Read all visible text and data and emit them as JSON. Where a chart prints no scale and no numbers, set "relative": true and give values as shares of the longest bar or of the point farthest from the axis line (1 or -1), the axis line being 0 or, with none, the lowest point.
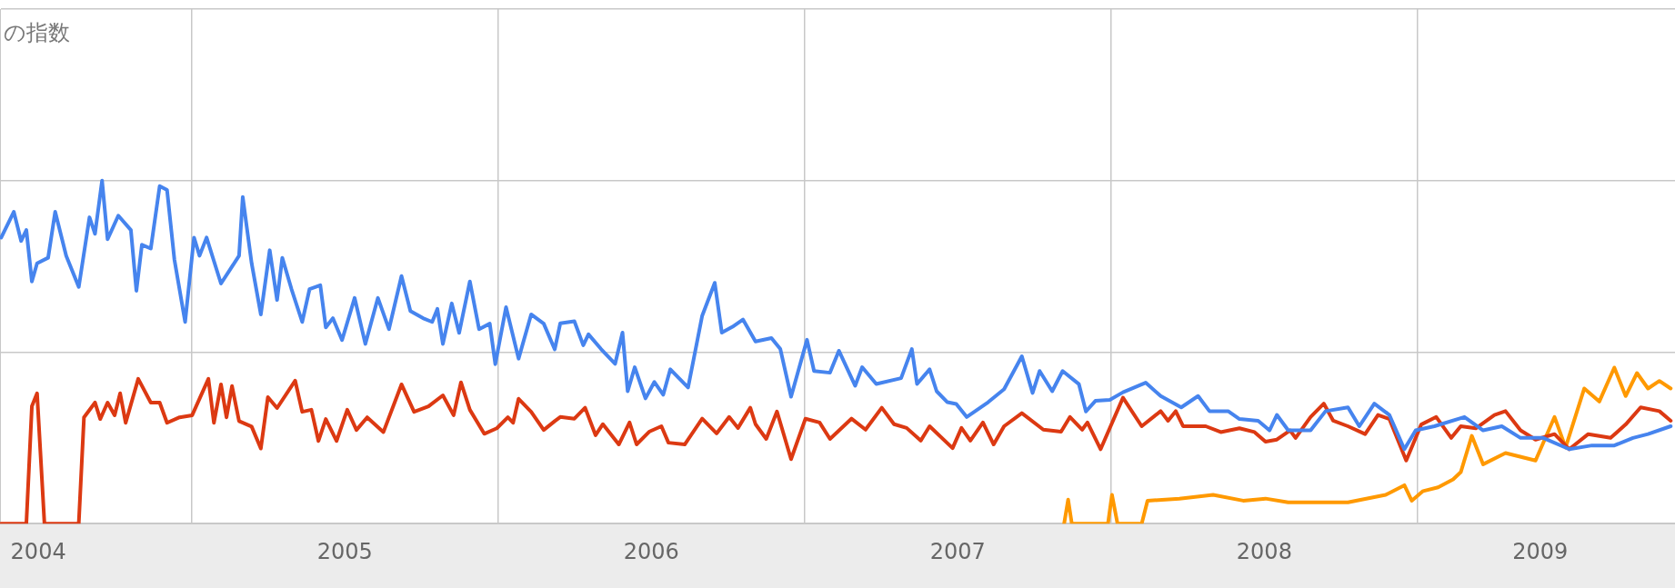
{
  "chart_data": {
    "type": "line",
    "annotations": [
      "の指数"
    ],
    "relative": true,
    "grid": true,
    "legend": false,
    "marker": "none",
    "line_style": "solid",
    "xlim": [
      2004.375,
      2009.84
    ],
    "xticks": [
      {
        "value": 2005,
        "label": null
      },
      {
        "value": 2006,
        "label": null
      },
      {
        "value": 2007,
        "label": null
      },
      {
        "value": 2008,
        "label": null
      },
      {
        "value": 2009,
        "label": null
      },
      {
        "value": 2004.5,
        "label": "2004"
      },
      {
        "value": 2005.5,
        "label": "2005"
      },
      {
        "value": 2006.5,
        "label": "2006"
      },
      {
        "value": 2007.5,
        "label": "2007"
      },
      {
        "value": 2008.5,
        "label": "2008"
      },
      {
        "value": 2009.4,
        "label": "2009"
      }
    ],
    "series": [
      {
        "color": "#4684ee",
        "x": [
          2004.379,
          2004.42,
          2004.444,
          2004.461,
          2004.479,
          2004.496,
          2004.532,
          2004.555,
          2004.591,
          2004.632,
          2004.667,
          2004.685,
          2004.708,
          2004.726,
          2004.761,
          2004.802,
          2004.82,
          2004.838,
          2004.867,
          2004.896,
          2004.92,
          2004.944,
          2004.979,
          2005.008,
          2005.026,
          2005.049,
          2005.096,
          2005.155,
          2005.167,
          2005.196,
          2005.226,
          2005.255,
          2005.279,
          2005.296,
          2005.326,
          2005.361,
          2005.385,
          2005.42,
          2005.438,
          2005.461,
          2005.491,
          2005.532,
          2005.567,
          2005.608,
          2005.644,
          2005.685,
          2005.714,
          2005.755,
          2005.785,
          2005.802,
          2005.82,
          2005.849,
          2005.873,
          2005.908,
          2005.938,
          2005.973,
          2005.991,
          2006.026,
          2006.067,
          2006.108,
          2006.149,
          2006.185,
          2006.203,
          2006.249,
          2006.278,
          2006.295,
          2006.336,
          2006.382,
          2006.406,
          2006.423,
          2006.446,
          2006.481,
          2006.51,
          2006.539,
          2006.562,
          2006.62,
          2006.666,
          2006.707,
          2006.73,
          2006.765,
          2006.799,
          2006.84,
          2006.892,
          2006.921,
          2006.956,
          2007.008,
          2007.031,
          2007.083,
          2007.112,
          2007.165,
          2007.188,
          2007.234,
          2007.315,
          2007.35,
          2007.367,
          2007.408,
          2007.431,
          2007.466,
          2007.495,
          2007.529,
          2007.599,
          2007.651,
          2007.709,
          2007.744,
          2007.767,
          2007.808,
          2007.842,
          2007.895,
          2007.918,
          2007.949,
          2007.996,
          2008.039,
          2008.113,
          2008.162,
          2008.229,
          2008.284,
          2008.321,
          2008.382,
          2008.419,
          2008.48,
          2008.517,
          2008.541,
          2008.578,
          2008.651,
          2008.7,
          2008.773,
          2008.81,
          2008.859,
          2008.908,
          2008.957,
          2008.994,
          2009.055,
          2009.153,
          2009.214,
          2009.275,
          2009.336,
          2009.41,
          2009.495,
          2009.569,
          2009.642,
          2009.703,
          2009.752,
          2009.826
        ],
        "values": [
          0.834,
          0.909,
          0.824,
          0.856,
          0.706,
          0.759,
          0.775,
          0.909,
          0.781,
          0.69,
          0.893,
          0.845,
          1.0,
          0.829,
          0.898,
          0.856,
          0.679,
          0.813,
          0.802,
          0.984,
          0.973,
          0.77,
          0.588,
          0.834,
          0.781,
          0.834,
          0.7,
          0.781,
          0.952,
          0.759,
          0.61,
          0.797,
          0.652,
          0.775,
          0.684,
          0.588,
          0.684,
          0.695,
          0.572,
          0.599,
          0.535,
          0.658,
          0.524,
          0.658,
          0.567,
          0.722,
          0.62,
          0.599,
          0.588,
          0.626,
          0.524,
          0.642,
          0.556,
          0.706,
          0.567,
          0.583,
          0.465,
          0.631,
          0.481,
          0.61,
          0.583,
          0.508,
          0.584,
          0.59,
          0.52,
          0.552,
          0.509,
          0.466,
          0.557,
          0.386,
          0.456,
          0.365,
          0.413,
          0.376,
          0.45,
          0.397,
          0.606,
          0.702,
          0.557,
          0.574,
          0.595,
          0.531,
          0.541,
          0.509,
          0.37,
          0.536,
          0.445,
          0.44,
          0.504,
          0.402,
          0.456,
          0.407,
          0.424,
          0.509,
          0.407,
          0.45,
          0.386,
          0.354,
          0.349,
          0.311,
          0.354,
          0.392,
          0.488,
          0.381,
          0.445,
          0.386,
          0.445,
          0.407,
          0.327,
          0.358,
          0.361,
          0.383,
          0.411,
          0.372,
          0.339,
          0.372,
          0.328,
          0.328,
          0.305,
          0.3,
          0.272,
          0.317,
          0.272,
          0.272,
          0.328,
          0.339,
          0.284,
          0.35,
          0.317,
          0.217,
          0.272,
          0.284,
          0.311,
          0.272,
          0.284,
          0.25,
          0.25,
          0.217,
          0.228,
          0.228,
          0.25,
          0.261,
          0.284
        ]
      },
      {
        "color": "#dc3912",
        "x": [
          2004.379,
          2004.461,
          2004.479,
          2004.496,
          2004.52,
          2004.632,
          2004.649,
          2004.685,
          2004.702,
          2004.726,
          2004.749,
          2004.767,
          2004.785,
          2004.826,
          2004.867,
          2004.896,
          2004.92,
          2004.961,
          2005.002,
          2005.055,
          2005.073,
          2005.096,
          2005.114,
          2005.132,
          2005.155,
          2005.196,
          2005.226,
          2005.249,
          2005.279,
          2005.338,
          2005.361,
          2005.391,
          2005.414,
          2005.438,
          2005.473,
          2005.508,
          2005.538,
          2005.573,
          2005.626,
          2005.685,
          2005.726,
          2005.773,
          2005.82,
          2005.855,
          2005.879,
          2005.908,
          2005.955,
          2005.996,
          2006.032,
          2006.049,
          2006.067,
          2006.108,
          2006.149,
          2006.185,
          2006.203,
          2006.249,
          2006.284,
          2006.318,
          2006.342,
          2006.394,
          2006.429,
          2006.452,
          2006.493,
          2006.533,
          2006.556,
          2006.609,
          2006.666,
          2006.713,
          2006.754,
          2006.783,
          2006.823,
          2006.84,
          2006.875,
          2006.91,
          2006.956,
          2007.003,
          2007.049,
          2007.083,
          2007.153,
          2007.199,
          2007.252,
          2007.292,
          2007.333,
          2007.379,
          2007.408,
          2007.483,
          2007.512,
          2007.541,
          2007.582,
          2007.617,
          2007.651,
          2007.709,
          2007.779,
          2007.837,
          2007.866,
          2007.906,
          2007.923,
          2007.966,
          2008.039,
          2008.1,
          2008.162,
          2008.186,
          2008.211,
          2008.235,
          2008.309,
          2008.358,
          2008.419,
          2008.468,
          2008.504,
          2008.541,
          2008.584,
          2008.602,
          2008.651,
          2008.694,
          2008.725,
          2008.773,
          2008.829,
          2008.871,
          2008.908,
          2008.963,
          2009.012,
          2009.061,
          2009.11,
          2009.141,
          2009.19,
          2009.251,
          2009.287,
          2009.336,
          2009.385,
          2009.447,
          2009.495,
          2009.557,
          2009.63,
          2009.679,
          2009.728,
          2009.789,
          2009.826
        ],
        "values": [
          0,
          0,
          0.342,
          0.38,
          0,
          0,
          0.31,
          0.353,
          0.305,
          0.353,
          0.316,
          0.38,
          0.294,
          0.422,
          0.353,
          0.353,
          0.294,
          0.31,
          0.316,
          0.422,
          0.294,
          0.406,
          0.31,
          0.401,
          0.299,
          0.283,
          0.219,
          0.369,
          0.337,
          0.417,
          0.326,
          0.332,
          0.241,
          0.305,
          0.241,
          0.332,
          0.273,
          0.31,
          0.267,
          0.406,
          0.326,
          0.342,
          0.374,
          0.316,
          0.412,
          0.332,
          0.262,
          0.278,
          0.31,
          0.294,
          0.364,
          0.326,
          0.273,
          0.299,
          0.311,
          0.306,
          0.338,
          0.258,
          0.29,
          0.231,
          0.295,
          0.231,
          0.268,
          0.284,
          0.236,
          0.231,
          0.306,
          0.263,
          0.311,
          0.279,
          0.338,
          0.29,
          0.247,
          0.327,
          0.188,
          0.306,
          0.295,
          0.247,
          0.306,
          0.274,
          0.338,
          0.29,
          0.279,
          0.242,
          0.284,
          0.22,
          0.279,
          0.242,
          0.295,
          0.231,
          0.284,
          0.322,
          0.274,
          0.268,
          0.311,
          0.274,
          0.295,
          0.217,
          0.367,
          0.284,
          0.328,
          0.3,
          0.328,
          0.284,
          0.284,
          0.267,
          0.278,
          0.267,
          0.239,
          0.245,
          0.272,
          0.25,
          0.311,
          0.35,
          0.3,
          0.284,
          0.261,
          0.317,
          0.305,
          0.184,
          0.289,
          0.311,
          0.25,
          0.284,
          0.278,
          0.317,
          0.328,
          0.272,
          0.245,
          0.261,
          0.217,
          0.261,
          0.25,
          0.289,
          0.339,
          0.328,
          0.3
        ]
      },
      {
        "color": "#ff9900",
        "x": [
          2007.847,
          2007.86,
          2007.872,
          2007.918,
          2007.99,
          2008.003,
          2008.021,
          2008.1,
          2008.119,
          2008.223,
          2008.333,
          2008.431,
          2008.504,
          2008.578,
          2008.773,
          2008.896,
          2008.957,
          2008.981,
          2009.018,
          2009.067,
          2009.116,
          2009.141,
          2009.177,
          2009.214,
          2009.287,
          2009.385,
          2009.447,
          2009.483,
          2009.544,
          2009.593,
          2009.642,
          2009.679,
          2009.716,
          2009.752,
          2009.789,
          2009.826
        ],
        "values": [
          0,
          0.07,
          0,
          0,
          0,
          0.084,
          0,
          0,
          0.067,
          0.073,
          0.084,
          0.067,
          0.073,
          0.062,
          0.062,
          0.084,
          0.112,
          0.067,
          0.095,
          0.106,
          0.129,
          0.15,
          0.256,
          0.173,
          0.206,
          0.184,
          0.311,
          0.222,
          0.394,
          0.356,
          0.455,
          0.372,
          0.439,
          0.394,
          0.416,
          0.394
        ]
      }
    ]
  }
}
